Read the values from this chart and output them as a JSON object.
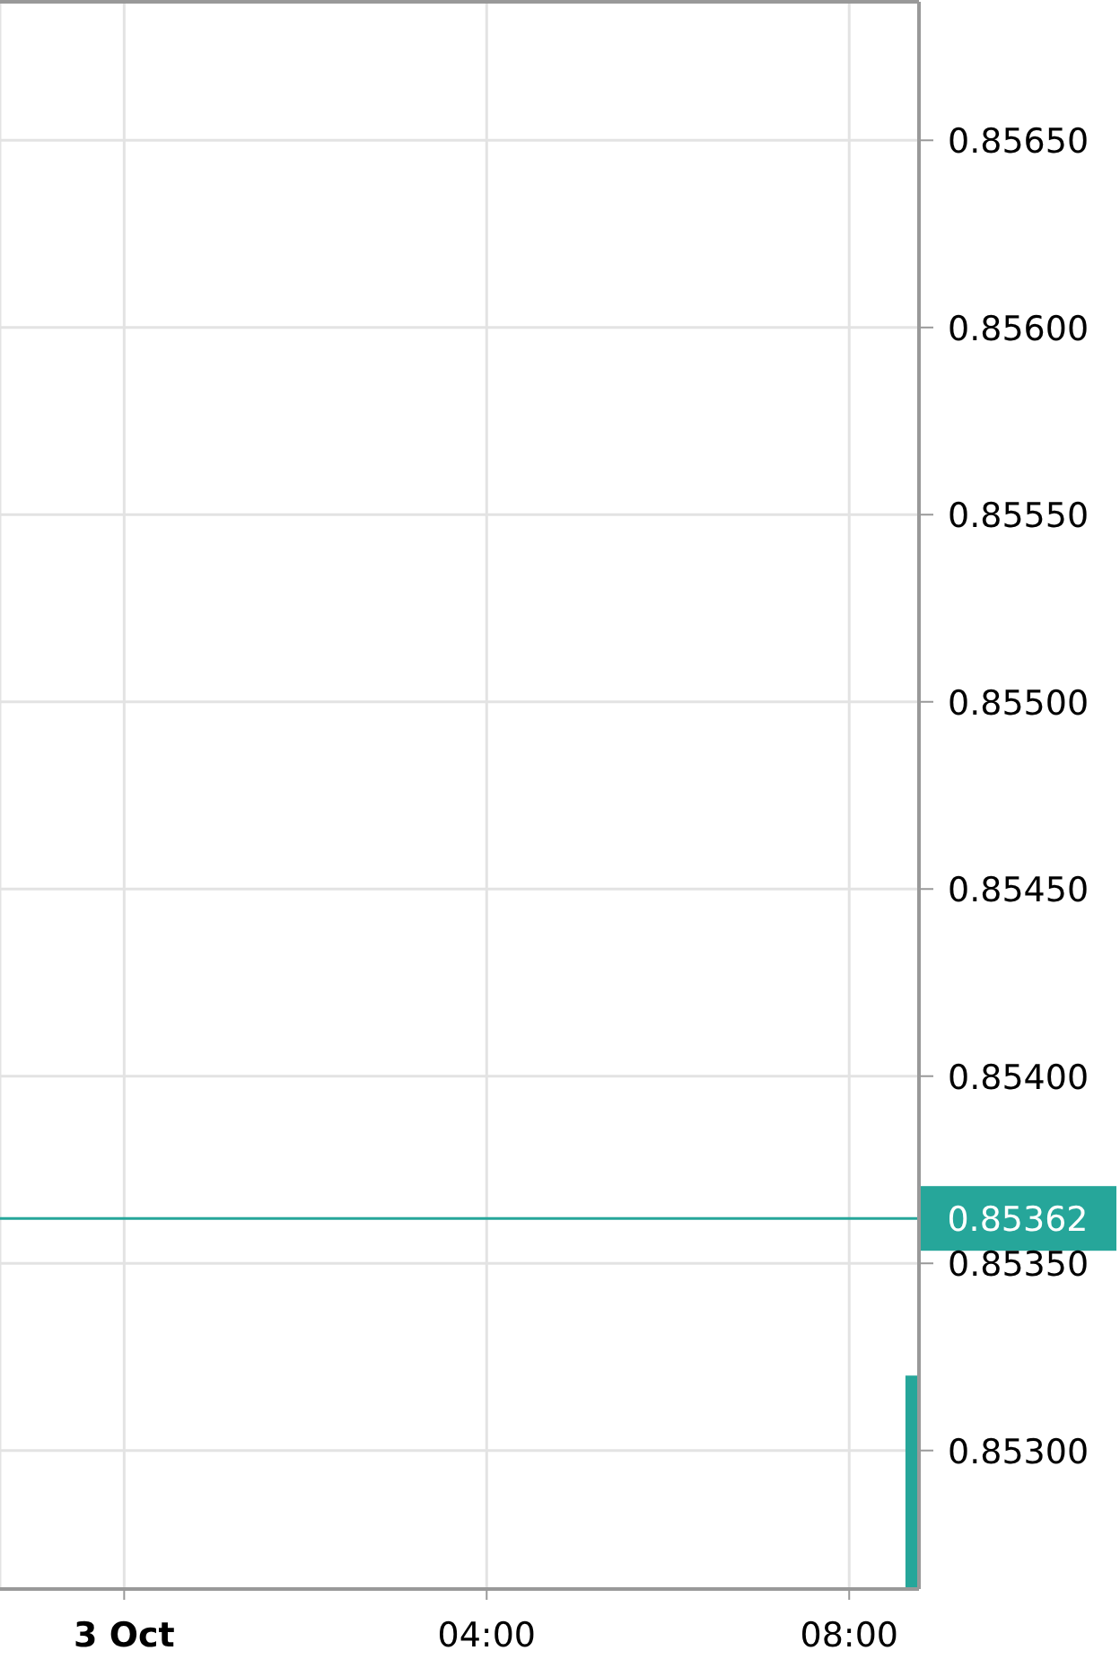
{
  "chart_data": {
    "type": "bar",
    "x": [
      8.7
    ],
    "values": [
      0.8532
    ],
    "color": "#26a69a",
    "xlim": [
      -1.37,
      8.77
    ],
    "xticks": [
      {
        "value": 0,
        "label": "3 Oct"
      },
      {
        "value": 4,
        "label": "04:00"
      },
      {
        "value": 8,
        "label": "08:00"
      }
    ],
    "ylim": [
      0.85263,
      0.85687
    ],
    "yticks": [
      {
        "value": 0.853,
        "label": "0.85300"
      },
      {
        "value": 0.8535,
        "label": "0.85350"
      },
      {
        "value": 0.854,
        "label": "0.85400"
      },
      {
        "value": 0.8545,
        "label": "0.85450"
      },
      {
        "value": 0.855,
        "label": "0.85500"
      },
      {
        "value": 0.8555,
        "label": "0.85550"
      },
      {
        "value": 0.856,
        "label": "0.85600"
      },
      {
        "value": 0.8565,
        "label": "0.85650"
      }
    ],
    "ref_lines": [
      {
        "axis": "y",
        "value": 0.85362,
        "label": "0.85362",
        "color": "#26a69a"
      }
    ],
    "grid": true
  }
}
